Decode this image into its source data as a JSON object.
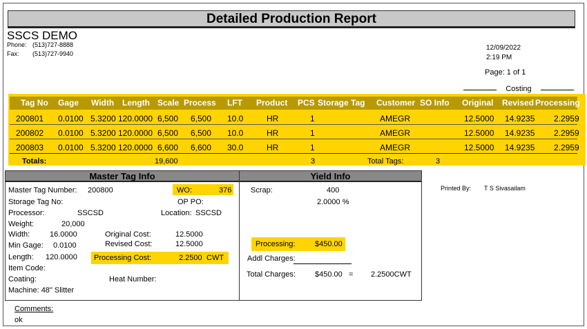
{
  "report": {
    "title": "Detailed Production Report",
    "company": "SSCS DEMO",
    "phone_label": "Phone:",
    "phone": "(513)727-8888",
    "fax_label": "Fax:",
    "fax": "(513)727-9940",
    "date": "12/09/2022",
    "time": "2:19 PM",
    "page": "Page: 1 of 1",
    "costing_label": "Costing"
  },
  "table": {
    "columns": [
      "Tag No",
      "Gage",
      "Width",
      "Length",
      "Scale",
      "Process",
      "LFT",
      "Product",
      "PCS",
      "Storage Tag",
      "Customer",
      "SO Info",
      "Original",
      "Revised",
      "Processing"
    ],
    "rows": [
      [
        "200801",
        "0.0100",
        "5.3200",
        "120.0000",
        "6,500",
        "6,500",
        "10.0",
        "HR",
        "1",
        "",
        "AMEGR",
        "",
        "12.5000",
        "14.9235",
        "2.2959"
      ],
      [
        "200802",
        "0.0100",
        "5.3200",
        "120.0000",
        "6,500",
        "6,500",
        "10.0",
        "HR",
        "1",
        "",
        "AMEGR",
        "",
        "12.5000",
        "14.9235",
        "2.2959"
      ],
      [
        "200803",
        "0.0100",
        "5.3200",
        "120.0000",
        "6,600",
        "6,600",
        "30.0",
        "HR",
        "1",
        "",
        "AMEGR",
        "",
        "12.5000",
        "14.9235",
        "2.2959"
      ]
    ],
    "totals": {
      "label": "Totals:",
      "scale": "19,600",
      "pcs": "3",
      "total_tags_label": "Total Tags:",
      "total_tags": "3"
    }
  },
  "master": {
    "header": "Master Tag Info",
    "master_tag_label": "Master Tag Number:",
    "master_tag": "200800",
    "wo_label": "WO:",
    "wo": "376",
    "storage_tag_label": "Storage Tag No:",
    "op_po_label": "OP PO:",
    "processor_label": "Processor:",
    "processor": "SSCSD",
    "location_label": "Location:",
    "location": "SSCSD",
    "weight_label": "Weight:",
    "weight": "20,000",
    "width_label": "Width:",
    "width": "16.0000",
    "original_cost_label": "Original Cost:",
    "original_cost": "12.5000",
    "min_gage_label": "Min Gage:",
    "min_gage": "0.0100",
    "revised_cost_label": "Revised Cost:",
    "revised_cost": "12.5000",
    "length_label": "Length:",
    "length": "120.0000",
    "processing_cost_label": "Processing Cost:",
    "processing_cost": "2.2500",
    "processing_cost_unit": "CWT",
    "item_code_label": "Item Code:",
    "coating_label": "Coating:",
    "heat_number_label": "Heat Number:",
    "machine": "Machine: 48\" Slitter"
  },
  "yield": {
    "header": "Yield Info",
    "scrap_label": "Scrap:",
    "scrap": "400",
    "scrap_pct": "2.0000 %",
    "processing_label": "Processing:",
    "processing": "$450.00",
    "addl_label": "Addl Charges:",
    "total_label": "Total Charges:",
    "total": "$450.00",
    "equals": "=",
    "total_cwt": "2.2500CWT"
  },
  "printed": {
    "label": "Printed By:",
    "name": "T S Sivasailam"
  },
  "comments": {
    "label": "Comments:",
    "text": "ok"
  }
}
